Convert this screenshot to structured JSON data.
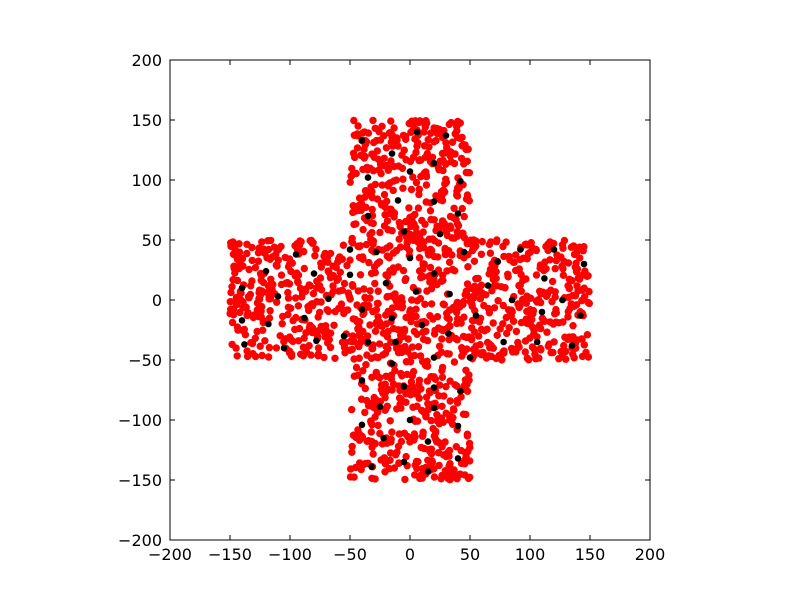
{
  "chart_data": {
    "type": "scatter",
    "title": "",
    "xlabel": "",
    "ylabel": "",
    "xlim": [
      -200,
      200
    ],
    "ylim": [
      -200,
      200
    ],
    "xticks": [
      -200,
      -150,
      -100,
      -50,
      0,
      50,
      100,
      150,
      200
    ],
    "yticks": [
      -200,
      -150,
      -100,
      -50,
      0,
      50,
      100,
      150,
      200
    ],
    "xtick_labels": [
      "−200",
      "−150",
      "−100",
      "−50",
      "0",
      "50",
      "100",
      "150",
      "200"
    ],
    "ytick_labels": [
      "−200",
      "−150",
      "−100",
      "−50",
      "0",
      "50",
      "100",
      "150",
      "200"
    ],
    "grid": false,
    "legend": "none",
    "series": [
      {
        "role": "samples",
        "color": "#ff0000",
        "region": "cross: |x|<=150 & |y|<=50, or |x|<=50 & |y|<=150",
        "count": 1500
      },
      {
        "role": "centers",
        "color": "#000000",
        "points": [
          [
            -40,
            133
          ],
          [
            -15,
            122
          ],
          [
            6,
            140
          ],
          [
            30,
            137
          ],
          [
            -35,
            102
          ],
          [
            0,
            107
          ],
          [
            20,
            114
          ],
          [
            42,
            99
          ],
          [
            -10,
            83
          ],
          [
            20,
            82
          ],
          [
            -35,
            70
          ],
          [
            40,
            72
          ],
          [
            -5,
            57
          ],
          [
            25,
            55
          ],
          [
            -50,
            42
          ],
          [
            -28,
            40
          ],
          [
            0,
            35
          ],
          [
            45,
            40
          ],
          [
            73,
            32
          ],
          [
            92,
            42
          ],
          [
            120,
            42
          ],
          [
            -120,
            24
          ],
          [
            -95,
            38
          ],
          [
            -80,
            22
          ],
          [
            -50,
            21
          ],
          [
            20,
            22
          ],
          [
            65,
            12
          ],
          [
            112,
            18
          ],
          [
            145,
            30
          ],
          [
            -140,
            10
          ],
          [
            -110,
            3
          ],
          [
            -68,
            1
          ],
          [
            -20,
            14
          ],
          [
            5,
            7
          ],
          [
            33,
            5
          ],
          [
            85,
            0
          ],
          [
            127,
            0
          ],
          [
            -140,
            -17
          ],
          [
            -118,
            -20
          ],
          [
            -88,
            -15
          ],
          [
            -40,
            -8
          ],
          [
            -15,
            -15
          ],
          [
            10,
            -21
          ],
          [
            55,
            -13
          ],
          [
            110,
            -10
          ],
          [
            142,
            -13
          ],
          [
            -138,
            -37
          ],
          [
            -105,
            -40
          ],
          [
            -78,
            -34
          ],
          [
            -55,
            -30
          ],
          [
            -35,
            -35
          ],
          [
            -12,
            -35
          ],
          [
            32,
            -28
          ],
          [
            78,
            -35
          ],
          [
            106,
            -35
          ],
          [
            135,
            -38
          ],
          [
            -15,
            -53
          ],
          [
            20,
            -48
          ],
          [
            50,
            -48
          ],
          [
            -40,
            -67
          ],
          [
            -5,
            -72
          ],
          [
            20,
            -73
          ],
          [
            42,
            -76
          ],
          [
            -25,
            -89
          ],
          [
            0,
            -100
          ],
          [
            20,
            -90
          ],
          [
            -40,
            -104
          ],
          [
            40,
            -105
          ],
          [
            -22,
            -115
          ],
          [
            15,
            -118
          ],
          [
            -32,
            -139
          ],
          [
            -5,
            -135
          ],
          [
            15,
            -143
          ],
          [
            40,
            -132
          ]
        ]
      }
    ]
  }
}
